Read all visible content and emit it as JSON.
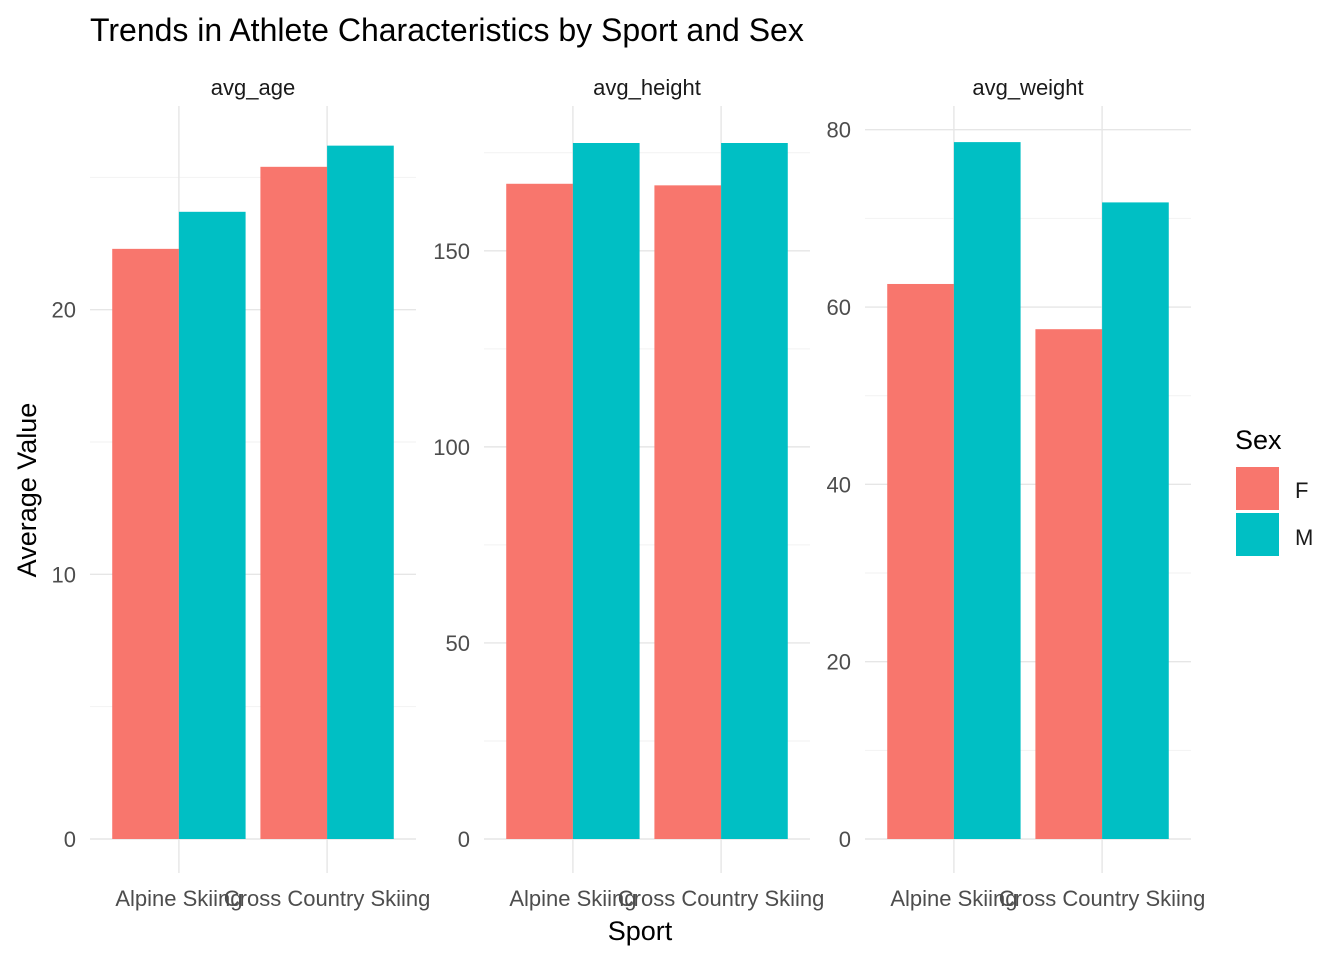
{
  "chart_data": {
    "type": "bar",
    "title": "Trends in Athlete Characteristics by Sport and Sex",
    "xlabel": "Sport",
    "ylabel": "Average Value",
    "categories": [
      "Alpine Skiing",
      "Cross Country Skiing"
    ],
    "legend": {
      "title": "Sex",
      "placement": "right",
      "entries": [
        {
          "name": "F",
          "color": "#F8766D"
        },
        {
          "name": "M",
          "color": "#00BFC4"
        }
      ]
    },
    "grid": true,
    "facets": [
      {
        "strip": "avg_age",
        "ylim": [
          0,
          26.3
        ],
        "yticks": [
          0,
          10,
          20
        ],
        "series": [
          {
            "name": "F",
            "values": [
              22.3,
              25.4
            ]
          },
          {
            "name": "M",
            "values": [
              23.7,
              26.2
            ]
          }
        ]
      },
      {
        "strip": "avg_height",
        "ylim": [
          0,
          177.5
        ],
        "yticks": [
          0,
          50,
          100,
          150
        ],
        "series": [
          {
            "name": "F",
            "values": [
              167.1,
              166.7
            ]
          },
          {
            "name": "M",
            "values": [
              177.5,
              177.5
            ]
          }
        ]
      },
      {
        "strip": "avg_weight",
        "ylim": [
          0,
          78.5
        ],
        "yticks": [
          0,
          20,
          40,
          60,
          80
        ],
        "series": [
          {
            "name": "F",
            "values": [
              62.6,
              57.5
            ]
          },
          {
            "name": "M",
            "values": [
              78.6,
              71.8
            ]
          }
        ]
      }
    ]
  }
}
